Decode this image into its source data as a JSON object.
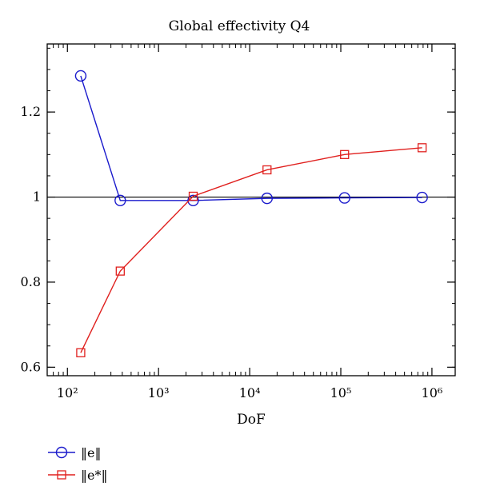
{
  "chart_data": {
    "type": "line",
    "title": "Global effectivity Q4",
    "xlabel": "DoF",
    "ylabel": "",
    "xscale": "log",
    "xlim": [
      60,
      1800000
    ],
    "ylim": [
      0.58,
      1.36
    ],
    "x_tick_labels": [
      "10²",
      "10³",
      "10⁴",
      "10⁵",
      "10⁶"
    ],
    "x_tick_values": [
      100,
      1000,
      10000,
      100000,
      1000000
    ],
    "y_tick_labels": [
      "0.6",
      "0.8",
      "1",
      "1.2"
    ],
    "y_tick_values": [
      0.6,
      0.8,
      1.0,
      1.2
    ],
    "reference_line": 1.0,
    "grid": false,
    "legend_position": "bottom-left, below plot",
    "series": [
      {
        "name": "‖e‖",
        "color": "#1a1acc",
        "marker": "circle",
        "x": [
          140,
          380,
          2400,
          15500,
          110000,
          780000
        ],
        "y": [
          1.285,
          0.992,
          0.992,
          0.997,
          0.998,
          0.999
        ]
      },
      {
        "name": "‖e*‖",
        "color": "#e0201e",
        "marker": "square",
        "x": [
          140,
          380,
          2400,
          15500,
          110000,
          780000
        ],
        "y": [
          0.634,
          0.826,
          1.002,
          1.064,
          1.1,
          1.116
        ]
      }
    ]
  }
}
